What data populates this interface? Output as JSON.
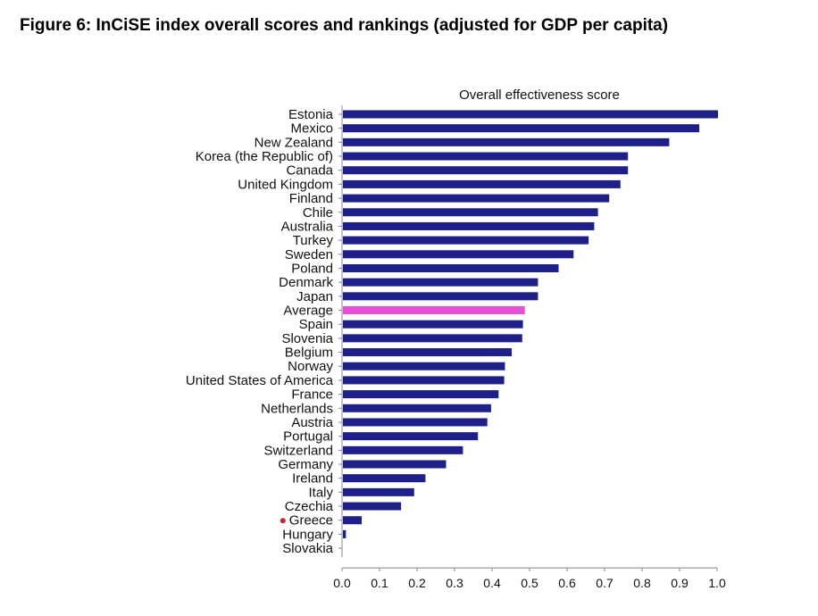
{
  "figure": {
    "title": "Figure 6: InCiSE index overall scores and rankings (adjusted for GDP per capita)"
  },
  "colors": {
    "bar": "#1f1f8a",
    "highlight": "#e94fd6",
    "marker": "#c0282d",
    "axis": "#888888"
  },
  "chart_data": {
    "type": "bar",
    "orientation": "horizontal",
    "title": "Overall effectiveness score",
    "xlabel": "",
    "ylabel": "",
    "xlim": [
      0,
      1
    ],
    "x_ticks": [
      "0.0",
      "0.1",
      "0.2",
      "0.3",
      "0.4",
      "0.5",
      "0.6",
      "0.7",
      "0.8",
      "0.9",
      "1.0"
    ],
    "grid": false,
    "categories": [
      "Estonia",
      "Mexico",
      "New Zealand",
      "Korea (the Republic of)",
      "Canada",
      "United Kingdom",
      "Finland",
      "Chile",
      "Australia",
      "Turkey",
      "Sweden",
      "Poland",
      "Denmark",
      "Japan",
      "Average",
      "Spain",
      "Slovenia",
      "Belgium",
      "Norway",
      "United States of America",
      "France",
      "Netherlands",
      "Austria",
      "Portugal",
      "Switzerland",
      "Germany",
      "Ireland",
      "Italy",
      "Czechia",
      "Greece",
      "Hungary",
      "Slovakia"
    ],
    "values": [
      1.0,
      0.95,
      0.87,
      0.76,
      0.76,
      0.74,
      0.71,
      0.68,
      0.67,
      0.655,
      0.615,
      0.575,
      0.52,
      0.52,
      0.485,
      0.48,
      0.478,
      0.45,
      0.432,
      0.43,
      0.415,
      0.395,
      0.385,
      0.36,
      0.32,
      0.275,
      0.22,
      0.19,
      0.155,
      0.05,
      0.008,
      0.0
    ],
    "highlighted_category": "Average",
    "marked_category": "Greece"
  }
}
